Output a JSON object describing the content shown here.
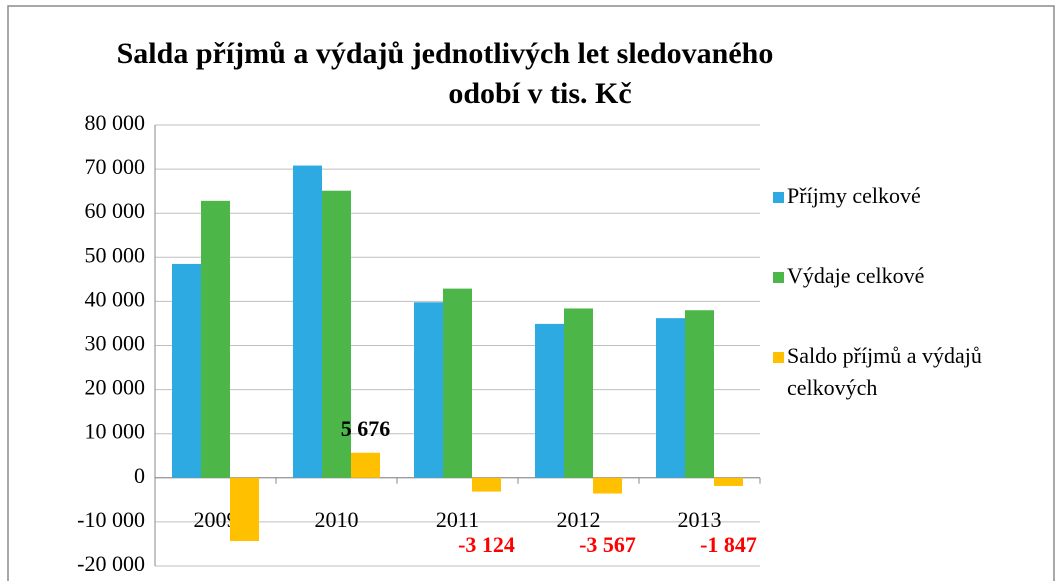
{
  "chart_data": {
    "type": "bar",
    "title": [
      "Salda příjmů a výdajů jednotlivých let sledovaného",
      "odobí v tis. Kč"
    ],
    "categories": [
      "2009",
      "2010",
      "2011",
      "2012",
      "2013"
    ],
    "series": [
      {
        "name": "Příjmy celkové",
        "color": "#2eaae2",
        "values": [
          48500,
          70800,
          39800,
          34900,
          36200
        ]
      },
      {
        "name": "Výdaje celkové",
        "color": "#4cb748",
        "values": [
          62800,
          65100,
          42900,
          38400,
          38000
        ]
      },
      {
        "name": "Saldo příjmů a výdajů celkových",
        "color": "#ffc000",
        "values": [
          -14335,
          5676,
          -3124,
          -3567,
          -1847
        ],
        "value_labels": [
          null,
          "5 676",
          "-3 124",
          "-3 567",
          "-1 847"
        ]
      }
    ],
    "ylim": [
      -20000,
      80000
    ],
    "yticks": [
      {
        "value": -20000,
        "label": "-20 000"
      },
      {
        "value": -10000,
        "label": "-10 000"
      },
      0,
      {
        "value": 10000,
        "label": "10 000"
      },
      {
        "value": 20000,
        "label": "20 000"
      },
      {
        "value": 30000,
        "label": "30 000"
      },
      {
        "value": 40000,
        "label": "40 000"
      },
      {
        "value": 50000,
        "label": "50 000"
      },
      {
        "value": 60000,
        "label": "60 000"
      },
      {
        "value": 70000,
        "label": "70 000"
      },
      {
        "value": 80000,
        "label": "80 000"
      }
    ],
    "grid": true,
    "legend": "right"
  }
}
